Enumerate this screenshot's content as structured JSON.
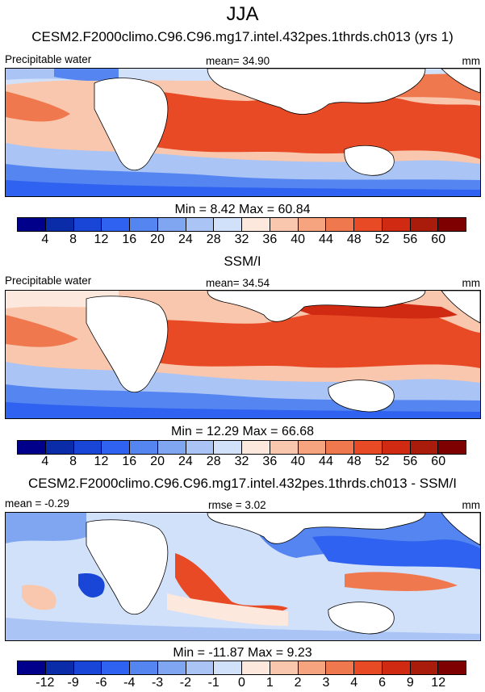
{
  "title": "JJA",
  "chart_data": [
    {
      "type": "heatmap",
      "subtitle": "CESM2.F2000climo.C96.C96.mg17.intel.432pes.1thrds.ch013 (yrs 1)",
      "left_label": "Precipitable water",
      "center_label": "mean=  34.90",
      "units": "mm",
      "minmax": "Min =   8.42 Max =  60.84",
      "min": 8.42,
      "max": 60.84,
      "mean": 34.9,
      "levels": [
        "4",
        "8",
        "12",
        "16",
        "20",
        "24",
        "28",
        "32",
        "36",
        "40",
        "44",
        "48",
        "52",
        "56",
        "60"
      ],
      "colors": [
        "#00008b",
        "#0a2ca8",
        "#1a46d8",
        "#2f62f0",
        "#5585f0",
        "#80a6f2",
        "#a9c4f5",
        "#d2e1fa",
        "#fce8dc",
        "#f9c7ae",
        "#f5a47f",
        "#f0784e",
        "#e84a26",
        "#d02a12",
        "#a91b0a",
        "#7e0000"
      ]
    },
    {
      "type": "heatmap",
      "subtitle": "SSM/I",
      "left_label": "Precipitable water",
      "center_label": "mean=  34.54",
      "units": "mm",
      "minmax": "Min =  12.29 Max =  66.68",
      "min": 12.29,
      "max": 66.68,
      "mean": 34.54,
      "levels": [
        "4",
        "8",
        "12",
        "16",
        "20",
        "24",
        "28",
        "32",
        "36",
        "40",
        "44",
        "48",
        "52",
        "56",
        "60"
      ],
      "colors": [
        "#00008b",
        "#0a2ca8",
        "#1a46d8",
        "#2f62f0",
        "#5585f0",
        "#80a6f2",
        "#a9c4f5",
        "#d2e1fa",
        "#fce8dc",
        "#f9c7ae",
        "#f5a47f",
        "#f0784e",
        "#e84a26",
        "#d02a12",
        "#a91b0a",
        "#7e0000"
      ]
    },
    {
      "type": "heatmap",
      "subtitle": "CESM2.F2000climo.C96.C96.mg17.intel.432pes.1thrds.ch013 - SSM/I",
      "left_label": "mean =  -0.29",
      "center_label": "rmse =  3.02",
      "units": "mm",
      "minmax": "Min = -11.87 Max =   9.23",
      "min": -11.87,
      "max": 9.23,
      "mean": -0.29,
      "rmse": 3.02,
      "levels": [
        "-12",
        "-9",
        "-6",
        "-4",
        "-3",
        "-2",
        "-1",
        "0",
        "1",
        "2",
        "3",
        "4",
        "6",
        "9",
        "12"
      ],
      "colors": [
        "#00008b",
        "#0a2ca8",
        "#1a46d8",
        "#2f62f0",
        "#5585f0",
        "#80a6f2",
        "#a9c4f5",
        "#d2e1fa",
        "#fce8dc",
        "#f9c7ae",
        "#f5a47f",
        "#f0784e",
        "#e84a26",
        "#d02a12",
        "#a91b0a",
        "#7e0000"
      ]
    }
  ]
}
